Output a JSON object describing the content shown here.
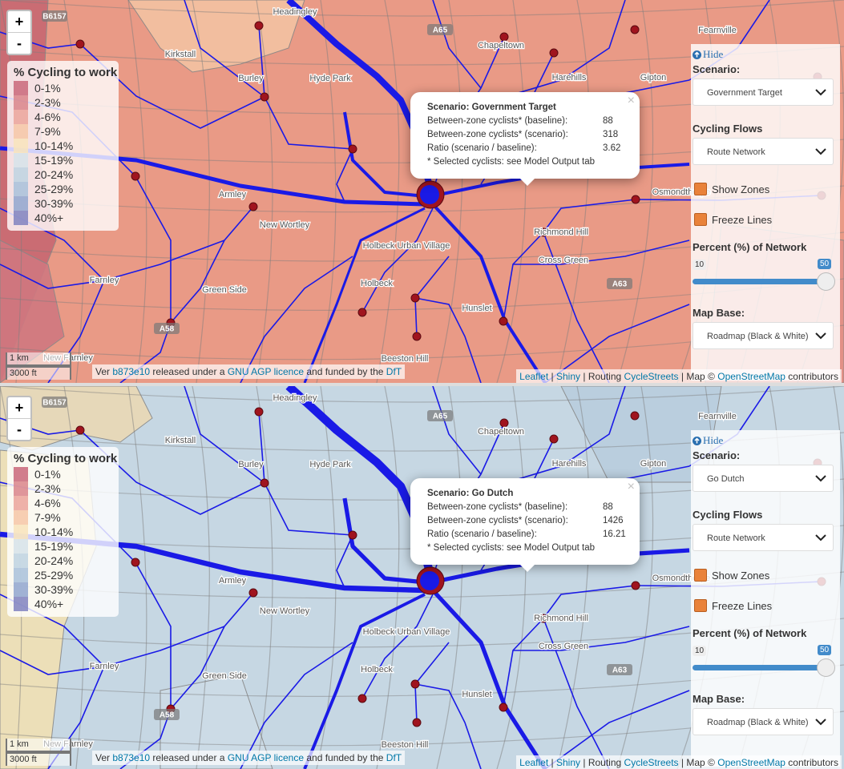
{
  "map": {
    "places": [
      "Headingley",
      "Kirkstall",
      "Burley",
      "Hyde Park",
      "Chapeltown",
      "Harehills",
      "Gipton",
      "Fearnville",
      "Armley",
      "New Wortley",
      "Osmondthorpe",
      "Richmond Hill",
      "Cross Green",
      "Holbeck Urban Village",
      "Holbeck",
      "Hunslet",
      "Beeston Hill",
      "Green Side",
      "Farnley",
      "New Farnley"
    ],
    "roads": [
      "B6157",
      "A65",
      "A63",
      "A58"
    ],
    "zoom_in": "+",
    "zoom_out": "-",
    "scale_metric": "1 km",
    "scale_imperial": "3000 ft",
    "attribution_left": [
      {
        "text": "Ver",
        "link": false
      },
      {
        "text": "b873e10",
        "link": true
      },
      {
        "text": "released under a",
        "link": false
      },
      {
        "text": "GNU AGP licence",
        "link": true
      },
      {
        "text": "and funded by the",
        "link": false
      },
      {
        "text": "DfT",
        "link": true
      }
    ],
    "attribution_right": [
      {
        "text": "Leaflet",
        "link": true
      },
      {
        "text": "|",
        "link": false
      },
      {
        "text": "Shiny",
        "link": true
      },
      {
        "text": "| Routing",
        "link": false
      },
      {
        "text": "CycleStreets",
        "link": true
      },
      {
        "text": "| Map ©",
        "link": false
      },
      {
        "text": "OpenStreetMap",
        "link": true
      },
      {
        "text": "contributors",
        "link": false
      }
    ],
    "legend": {
      "title": "% Cycling to work",
      "items": [
        {
          "label": "0-1%",
          "color": "#c9677a"
        },
        {
          "label": "2-3%",
          "color": "#d9858b"
        },
        {
          "label": "4-6%",
          "color": "#eba59b"
        },
        {
          "label": "7-9%",
          "color": "#f6c7a7"
        },
        {
          "label": "10-14%",
          "color": "#f8e4bc"
        },
        {
          "label": "15-19%",
          "color": "#d6e3ea"
        },
        {
          "label": "20-24%",
          "color": "#bed3e2"
        },
        {
          "label": "25-29%",
          "color": "#a8c1da"
        },
        {
          "label": "30-39%",
          "color": "#90a6cf"
        },
        {
          "label": "40%+",
          "color": "#8083bf"
        }
      ]
    }
  },
  "controls": {
    "hide": "Hide",
    "scenario_label": "Scenario:",
    "flows_label": "Cycling Flows",
    "flows_value": "Route Network",
    "show_zones": "Show Zones",
    "freeze_lines": "Freeze Lines",
    "percent_label": "Percent (%) of Network",
    "slider_min": 10,
    "slider_max": 50,
    "base_label": "Map Base:",
    "base_value": "Roadmap (Black & White)"
  },
  "panels": [
    {
      "zone_color": "#e99a86",
      "scenario": "Government Target",
      "popup": {
        "title": "Scenario: Government Target",
        "rows": [
          {
            "label": "Between-zone cyclists* (baseline):",
            "value": "88"
          },
          {
            "label": "Between-zone cyclists* (scenario):",
            "value": "318"
          },
          {
            "label": "Ratio (scenario / baseline):",
            "value": "3.62"
          }
        ],
        "note": "* Selected cyclists: see Model Output tab",
        "close": "×"
      }
    },
    {
      "zone_color": "#c6d7e3",
      "scenario": "Go Dutch",
      "popup": {
        "title": "Scenario: Go Dutch",
        "rows": [
          {
            "label": "Between-zone cyclists* (baseline):",
            "value": "88"
          },
          {
            "label": "Between-zone cyclists* (scenario):",
            "value": "1426"
          },
          {
            "label": "Ratio (scenario / baseline):",
            "value": "16.21"
          }
        ],
        "note": "* Selected cyclists: see Model Output tab",
        "close": "×"
      }
    }
  ]
}
